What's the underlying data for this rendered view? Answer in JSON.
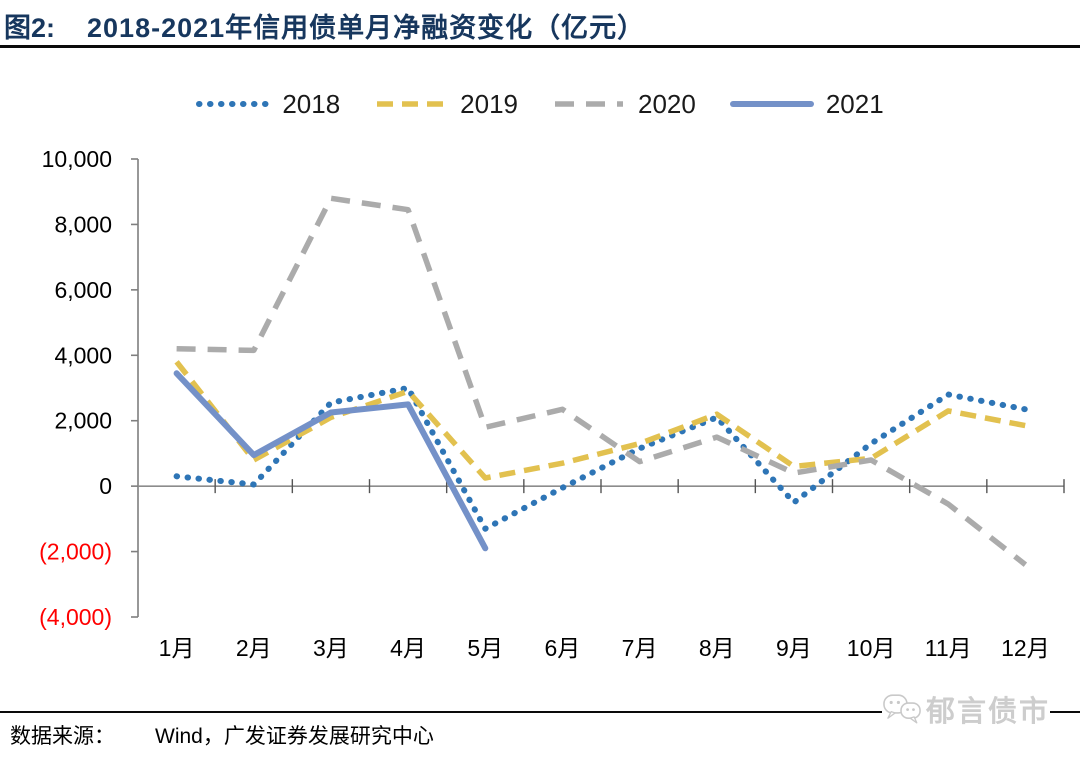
{
  "figure": {
    "label": "图2:",
    "title": "2018-2021年信用债单月净融资变化（亿元）"
  },
  "colors": {
    "title_navy": "#17375E",
    "negative_tick_red": "#FF0000",
    "axis_gray": "#808080",
    "watermark_gray": "#CDCDCD"
  },
  "chart_data": {
    "type": "line",
    "title": "2018-2021年信用债单月净融资变化（亿元）",
    "unit": "亿元",
    "categories": [
      "1月",
      "2月",
      "3月",
      "4月",
      "5月",
      "6月",
      "7月",
      "8月",
      "9月",
      "10月",
      "11月",
      "12月"
    ],
    "series": [
      {
        "name": "2018",
        "color": "#2E75B6",
        "style": "dotted",
        "values": [
          300,
          50,
          2550,
          3000,
          -1300,
          -50,
          1150,
          2100,
          -500,
          1300,
          2800,
          2350
        ]
      },
      {
        "name": "2019",
        "color": "#E2C14F",
        "style": "dashed",
        "values": [
          3800,
          800,
          2100,
          2900,
          250,
          700,
          1300,
          2200,
          600,
          850,
          2300,
          1850
        ]
      },
      {
        "name": "2020",
        "color": "#ABABAB",
        "style": "dashed-long",
        "values": [
          4200,
          4150,
          8800,
          8450,
          1800,
          2350,
          750,
          1500,
          400,
          800,
          -550,
          -2400
        ]
      },
      {
        "name": "2021",
        "color": "#7491C8",
        "style": "solid",
        "values": [
          3450,
          950,
          2250,
          2500,
          -1900,
          null,
          null,
          null,
          null,
          null,
          null,
          null
        ]
      }
    ],
    "ylim": [
      -4000,
      10000
    ],
    "yticks": [
      {
        "value": 10000,
        "label": "10,000",
        "negative": false
      },
      {
        "value": 8000,
        "label": "8,000",
        "negative": false
      },
      {
        "value": 6000,
        "label": "6,000",
        "negative": false
      },
      {
        "value": 4000,
        "label": "4,000",
        "negative": false
      },
      {
        "value": 2000,
        "label": "2,000",
        "negative": false
      },
      {
        "value": 0,
        "label": "0",
        "negative": false
      },
      {
        "value": -2000,
        "label": "(2,000)",
        "negative": true
      },
      {
        "value": -4000,
        "label": "(4,000)",
        "negative": true
      }
    ],
    "grid": false,
    "legend_position": "top"
  },
  "footer": {
    "source_label": "数据来源：",
    "source_value": "Wind，广发证券发展研究中心"
  },
  "watermark": {
    "text": "郁言债市"
  }
}
